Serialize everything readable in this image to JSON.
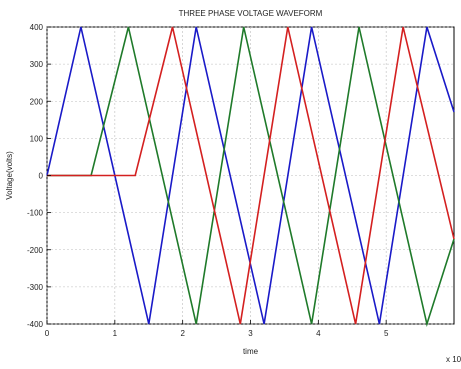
{
  "chart_data": {
    "type": "line",
    "title": "THREE PHASE VOLTAGE WAVEFORM",
    "xlabel": "time",
    "ylabel": "Voltage(volts)",
    "x_multiplier": "x 10",
    "xlim": [
      0,
      6
    ],
    "ylim": [
      -400,
      400
    ],
    "xticks": [
      0,
      1,
      2,
      3,
      4,
      5
    ],
    "xtick_labels": [
      "0",
      "1",
      "2",
      "3",
      "4",
      "5"
    ],
    "yticks": [
      400,
      300,
      200,
      100,
      0,
      -100,
      -200,
      -300,
      -400
    ],
    "ytick_labels": [
      "400",
      "300",
      "200",
      "100",
      "0",
      "-100",
      "-200",
      "-300",
      "-400"
    ],
    "grid": true,
    "series": [
      {
        "color": "#1a1ac8",
        "x": [
          0,
          0.5,
          1.5,
          2.2,
          3.2,
          3.9,
          4.9,
          5.6,
          6.0
        ],
        "y": [
          0,
          400,
          -400,
          400,
          -400,
          400,
          -400,
          400,
          171
        ]
      },
      {
        "color": "#1f7a2a",
        "x": [
          0,
          0.65,
          1.2,
          2.2,
          2.9,
          3.9,
          4.6,
          5.6,
          6.0
        ],
        "y": [
          0,
          0,
          400,
          -400,
          400,
          -400,
          400,
          -400,
          -171
        ]
      },
      {
        "color": "#d42020",
        "x": [
          0,
          1.3,
          1.85,
          2.85,
          3.55,
          4.55,
          5.25,
          6.0
        ],
        "y": [
          0,
          0,
          400,
          -400,
          400,
          -400,
          400,
          -171
        ]
      }
    ]
  }
}
